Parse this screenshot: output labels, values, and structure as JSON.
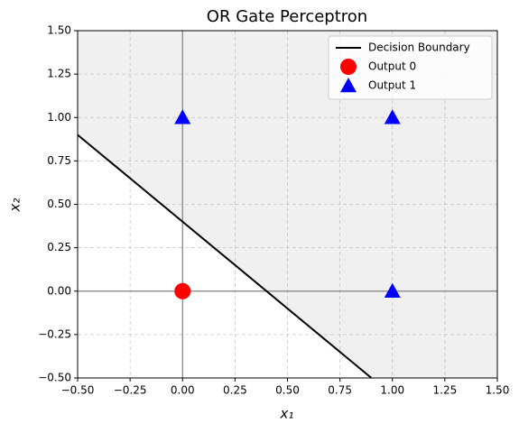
{
  "chart_data": {
    "type": "scatter",
    "title": "OR Gate Perceptron",
    "xlabel": "x₁",
    "ylabel": "x₂",
    "xlim": [
      -0.5,
      1.5
    ],
    "ylim": [
      -0.5,
      1.5
    ],
    "xticks": [
      {
        "value": -0.5,
        "label": "−0.50"
      },
      {
        "value": -0.25,
        "label": "−0.25"
      },
      {
        "value": 0,
        "label": "0.00"
      },
      {
        "value": 0.25,
        "label": "0.25"
      },
      {
        "value": 0.5,
        "label": "0.50"
      },
      {
        "value": 0.75,
        "label": "0.75"
      },
      {
        "value": 1,
        "label": "1.00"
      },
      {
        "value": 1.25,
        "label": "1.25"
      },
      {
        "value": 1.5,
        "label": "1.50"
      }
    ],
    "yticks": [
      {
        "value": -0.5,
        "label": "−0.50"
      },
      {
        "value": -0.25,
        "label": "−0.25"
      },
      {
        "value": 0,
        "label": "0.00"
      },
      {
        "value": 0.25,
        "label": "0.25"
      },
      {
        "value": 0.5,
        "label": "0.50"
      },
      {
        "value": 0.75,
        "label": "0.75"
      },
      {
        "value": 1,
        "label": "1.00"
      },
      {
        "value": 1.25,
        "label": "1.25"
      },
      {
        "value": 1.5,
        "label": "1.50"
      }
    ],
    "grid": true,
    "legend": "upper right",
    "hlines": [
      0
    ],
    "vlines": [
      0
    ],
    "shade_color": "#f0f0f0",
    "series": [
      {
        "name": "Decision Boundary",
        "marker": "line",
        "color": "#000000",
        "x": [
          -0.5,
          0.9
        ],
        "values": [
          0.9,
          -0.5
        ]
      },
      {
        "name": "Output 0",
        "marker": "circle",
        "color": "#ff0000",
        "x": [
          0
        ],
        "values": [
          0
        ]
      },
      {
        "name": "Output 1",
        "marker": "triangle",
        "color": "#0000ff",
        "x": [
          0,
          1,
          1
        ],
        "values": [
          1,
          0,
          1
        ]
      }
    ]
  }
}
